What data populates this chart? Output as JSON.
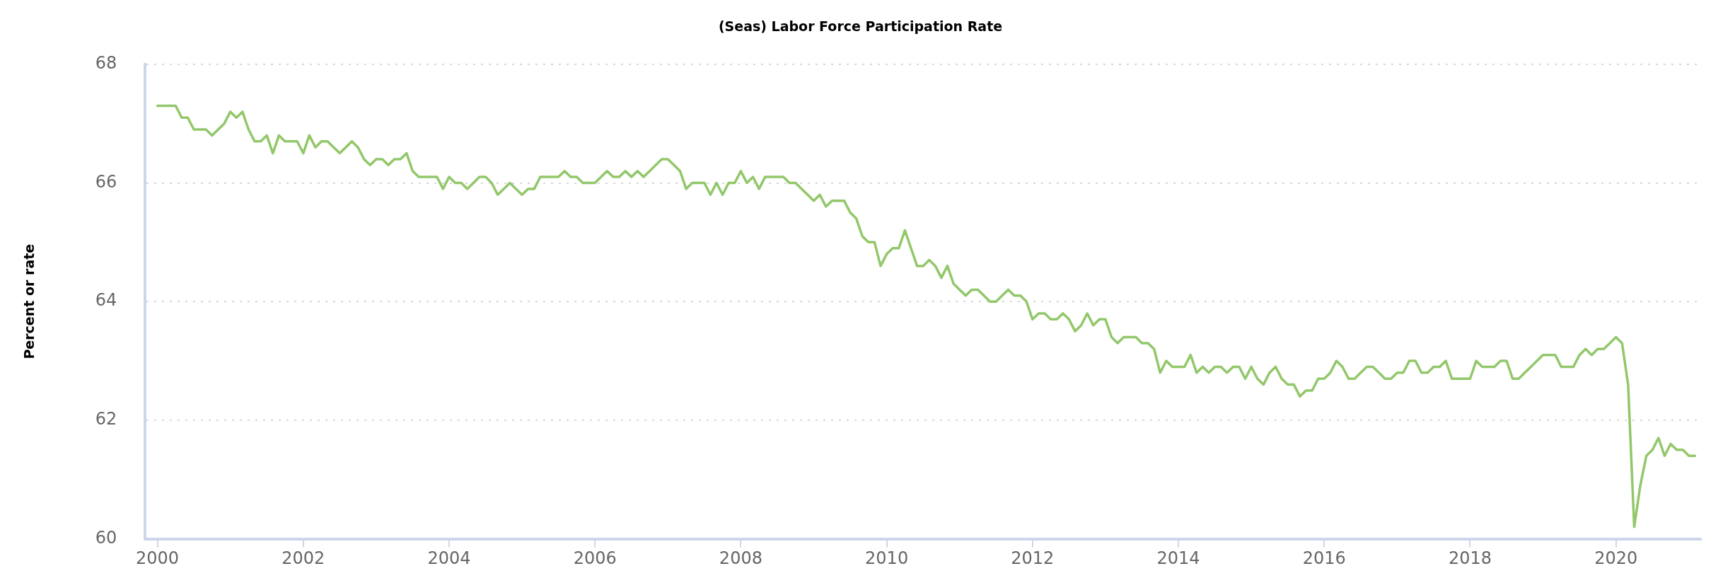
{
  "chart_data": {
    "type": "line",
    "title": "(Seas) Labor Force Participation Rate",
    "ylabel": "Percent or rate",
    "x": [
      "2000-01",
      "2000-02",
      "2000-03",
      "2000-04",
      "2000-05",
      "2000-06",
      "2000-07",
      "2000-08",
      "2000-09",
      "2000-10",
      "2000-11",
      "2000-12",
      "2001-01",
      "2001-02",
      "2001-03",
      "2001-04",
      "2001-05",
      "2001-06",
      "2001-07",
      "2001-08",
      "2001-09",
      "2001-10",
      "2001-11",
      "2001-12",
      "2002-01",
      "2002-02",
      "2002-03",
      "2002-04",
      "2002-05",
      "2002-06",
      "2002-07",
      "2002-08",
      "2002-09",
      "2002-10",
      "2002-11",
      "2002-12",
      "2003-01",
      "2003-02",
      "2003-03",
      "2003-04",
      "2003-05",
      "2003-06",
      "2003-07",
      "2003-08",
      "2003-09",
      "2003-10",
      "2003-11",
      "2003-12",
      "2004-01",
      "2004-02",
      "2004-03",
      "2004-04",
      "2004-05",
      "2004-06",
      "2004-07",
      "2004-08",
      "2004-09",
      "2004-10",
      "2004-11",
      "2004-12",
      "2005-01",
      "2005-02",
      "2005-03",
      "2005-04",
      "2005-05",
      "2005-06",
      "2005-07",
      "2005-08",
      "2005-09",
      "2005-10",
      "2005-11",
      "2005-12",
      "2006-01",
      "2006-02",
      "2006-03",
      "2006-04",
      "2006-05",
      "2006-06",
      "2006-07",
      "2006-08",
      "2006-09",
      "2006-10",
      "2006-11",
      "2006-12",
      "2007-01",
      "2007-02",
      "2007-03",
      "2007-04",
      "2007-05",
      "2007-06",
      "2007-07",
      "2007-08",
      "2007-09",
      "2007-10",
      "2007-11",
      "2007-12",
      "2008-01",
      "2008-02",
      "2008-03",
      "2008-04",
      "2008-05",
      "2008-06",
      "2008-07",
      "2008-08",
      "2008-09",
      "2008-10",
      "2008-11",
      "2008-12",
      "2009-01",
      "2009-02",
      "2009-03",
      "2009-04",
      "2009-05",
      "2009-06",
      "2009-07",
      "2009-08",
      "2009-09",
      "2009-10",
      "2009-11",
      "2009-12",
      "2010-01",
      "2010-02",
      "2010-03",
      "2010-04",
      "2010-05",
      "2010-06",
      "2010-07",
      "2010-08",
      "2010-09",
      "2010-10",
      "2010-11",
      "2010-12",
      "2011-01",
      "2011-02",
      "2011-03",
      "2011-04",
      "2011-05",
      "2011-06",
      "2011-07",
      "2011-08",
      "2011-09",
      "2011-10",
      "2011-11",
      "2011-12",
      "2012-01",
      "2012-02",
      "2012-03",
      "2012-04",
      "2012-05",
      "2012-06",
      "2012-07",
      "2012-08",
      "2012-09",
      "2012-10",
      "2012-11",
      "2012-12",
      "2013-01",
      "2013-02",
      "2013-03",
      "2013-04",
      "2013-05",
      "2013-06",
      "2013-07",
      "2013-08",
      "2013-09",
      "2013-10",
      "2013-11",
      "2013-12",
      "2014-01",
      "2014-02",
      "2014-03",
      "2014-04",
      "2014-05",
      "2014-06",
      "2014-07",
      "2014-08",
      "2014-09",
      "2014-10",
      "2014-11",
      "2014-12",
      "2015-01",
      "2015-02",
      "2015-03",
      "2015-04",
      "2015-05",
      "2015-06",
      "2015-07",
      "2015-08",
      "2015-09",
      "2015-10",
      "2015-11",
      "2015-12",
      "2016-01",
      "2016-02",
      "2016-03",
      "2016-04",
      "2016-05",
      "2016-06",
      "2016-07",
      "2016-08",
      "2016-09",
      "2016-10",
      "2016-11",
      "2016-12",
      "2017-01",
      "2017-02",
      "2017-03",
      "2017-04",
      "2017-05",
      "2017-06",
      "2017-07",
      "2017-08",
      "2017-09",
      "2017-10",
      "2017-11",
      "2017-12",
      "2018-01",
      "2018-02",
      "2018-03",
      "2018-04",
      "2018-05",
      "2018-06",
      "2018-07",
      "2018-08",
      "2018-09",
      "2018-10",
      "2018-11",
      "2018-12",
      "2019-01",
      "2019-02",
      "2019-03",
      "2019-04",
      "2019-05",
      "2019-06",
      "2019-07",
      "2019-08",
      "2019-09",
      "2019-10",
      "2019-11",
      "2019-12",
      "2020-01",
      "2020-02",
      "2020-03",
      "2020-04",
      "2020-05",
      "2020-06",
      "2020-07",
      "2020-08",
      "2020-09",
      "2020-10",
      "2020-11",
      "2020-12",
      "2021-01",
      "2021-02"
    ],
    "series": [
      {
        "color": "#92c76a",
        "values": [
          67.3,
          67.3,
          67.3,
          67.3,
          67.1,
          67.1,
          66.9,
          66.9,
          66.9,
          66.8,
          66.9,
          67.0,
          67.2,
          67.1,
          67.2,
          66.9,
          66.7,
          66.7,
          66.8,
          66.5,
          66.8,
          66.7,
          66.7,
          66.7,
          66.5,
          66.8,
          66.6,
          66.7,
          66.7,
          66.6,
          66.5,
          66.6,
          66.7,
          66.6,
          66.4,
          66.3,
          66.4,
          66.4,
          66.3,
          66.4,
          66.4,
          66.5,
          66.2,
          66.1,
          66.1,
          66.1,
          66.1,
          65.9,
          66.1,
          66.0,
          66.0,
          65.9,
          66.0,
          66.1,
          66.1,
          66.0,
          65.8,
          65.9,
          66.0,
          65.9,
          65.8,
          65.9,
          65.9,
          66.1,
          66.1,
          66.1,
          66.1,
          66.2,
          66.1,
          66.1,
          66.0,
          66.0,
          66.0,
          66.1,
          66.2,
          66.1,
          66.1,
          66.2,
          66.1,
          66.2,
          66.1,
          66.2,
          66.3,
          66.4,
          66.4,
          66.3,
          66.2,
          65.9,
          66.0,
          66.0,
          66.0,
          65.8,
          66.0,
          65.8,
          66.0,
          66.0,
          66.2,
          66.0,
          66.1,
          65.9,
          66.1,
          66.1,
          66.1,
          66.1,
          66.0,
          66.0,
          65.9,
          65.8,
          65.7,
          65.8,
          65.6,
          65.7,
          65.7,
          65.7,
          65.5,
          65.4,
          65.1,
          65.0,
          65.0,
          64.6,
          64.8,
          64.9,
          64.9,
          65.2,
          64.9,
          64.6,
          64.6,
          64.7,
          64.6,
          64.4,
          64.6,
          64.3,
          64.2,
          64.1,
          64.2,
          64.2,
          64.1,
          64.0,
          64.0,
          64.1,
          64.2,
          64.1,
          64.1,
          64.0,
          63.7,
          63.8,
          63.8,
          63.7,
          63.7,
          63.8,
          63.7,
          63.5,
          63.6,
          63.8,
          63.6,
          63.7,
          63.7,
          63.4,
          63.3,
          63.4,
          63.4,
          63.4,
          63.3,
          63.3,
          63.2,
          62.8,
          63.0,
          62.9,
          62.9,
          62.9,
          63.1,
          62.8,
          62.9,
          62.8,
          62.9,
          62.9,
          62.8,
          62.9,
          62.9,
          62.7,
          62.9,
          62.7,
          62.6,
          62.8,
          62.9,
          62.7,
          62.6,
          62.6,
          62.4,
          62.5,
          62.5,
          62.7,
          62.7,
          62.8,
          63.0,
          62.9,
          62.7,
          62.7,
          62.8,
          62.9,
          62.9,
          62.8,
          62.7,
          62.7,
          62.8,
          62.8,
          63.0,
          63.0,
          62.8,
          62.8,
          62.9,
          62.9,
          63.0,
          62.7,
          62.7,
          62.7,
          62.7,
          63.0,
          62.9,
          62.9,
          62.9,
          63.0,
          63.0,
          62.7,
          62.7,
          62.8,
          62.9,
          63.0,
          63.1,
          63.1,
          63.1,
          62.9,
          62.9,
          62.9,
          63.1,
          63.2,
          63.1,
          63.2,
          63.2,
          63.3,
          63.4,
          63.3,
          62.6,
          60.2,
          60.9,
          61.4,
          61.5,
          61.7,
          61.4,
          61.6,
          61.5,
          61.5,
          61.4,
          61.4
        ]
      }
    ],
    "xlim": [
      "1999-11",
      "2021-03"
    ],
    "xticks": [
      "2000",
      "2002",
      "2004",
      "2006",
      "2008",
      "2010",
      "2012",
      "2014",
      "2016",
      "2018",
      "2020"
    ],
    "ylim": [
      60,
      68
    ],
    "yticks": [
      60,
      62,
      64,
      66,
      68
    ],
    "grid": "y",
    "legend": false,
    "marker": "none",
    "line_style": "solid"
  }
}
